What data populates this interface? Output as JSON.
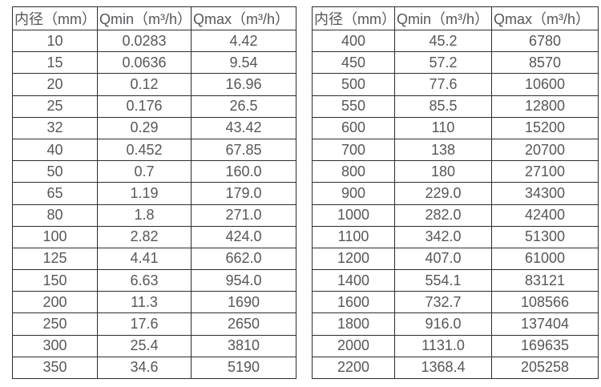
{
  "page": {
    "background_color": "#ffffff",
    "text_color": "#56575a",
    "border_color": "#2d2d2d"
  },
  "tables": [
    {
      "name": "flow-rate-table-small-diameters",
      "headers": [
        "内径（mm）",
        "Qmin（m³/h）",
        "Qmax（m³/h）"
      ],
      "rows": [
        [
          "10",
          "0.0283",
          "4.42"
        ],
        [
          "15",
          "0.0636",
          "9.54"
        ],
        [
          "20",
          "0.12",
          "16.96"
        ],
        [
          "25",
          "0.176",
          "26.5"
        ],
        [
          "32",
          "0.29",
          "43.42"
        ],
        [
          "40",
          "0.452",
          "67.85"
        ],
        [
          "50",
          "0.7",
          "160.0"
        ],
        [
          "65",
          "1.19",
          "179.0"
        ],
        [
          "80",
          "1.8",
          "271.0"
        ],
        [
          "100",
          "2.82",
          "424.0"
        ],
        [
          "125",
          "4.41",
          "662.0"
        ],
        [
          "150",
          "6.63",
          "954.0"
        ],
        [
          "200",
          "11.3",
          "1690"
        ],
        [
          "250",
          "17.6",
          "2650"
        ],
        [
          "300",
          "25.4",
          "3810"
        ],
        [
          "350",
          "34.6",
          "5190"
        ]
      ]
    },
    {
      "name": "flow-rate-table-large-diameters",
      "headers": [
        "内径（mm）",
        "Qmin（m³/h）",
        "Qmax（m³/h）"
      ],
      "rows": [
        [
          "400",
          "45.2",
          "6780"
        ],
        [
          "450",
          "57.2",
          "8570"
        ],
        [
          "500",
          "77.6",
          "10600"
        ],
        [
          "550",
          "85.5",
          "12800"
        ],
        [
          "600",
          "110",
          "15200"
        ],
        [
          "700",
          "138",
          "20700"
        ],
        [
          "800",
          "180",
          "27100"
        ],
        [
          "900",
          "229.0",
          "34300"
        ],
        [
          "1000",
          "282.0",
          "42400"
        ],
        [
          "1100",
          "342.0",
          "51300"
        ],
        [
          "1200",
          "407.0",
          "61000"
        ],
        [
          "1400",
          "554.1",
          "83121"
        ],
        [
          "1600",
          "732.7",
          "108566"
        ],
        [
          "1800",
          "916.0",
          "137404"
        ],
        [
          "2000",
          "1131.0",
          "169635"
        ],
        [
          "2200",
          "1368.4",
          "205258"
        ]
      ]
    }
  ]
}
